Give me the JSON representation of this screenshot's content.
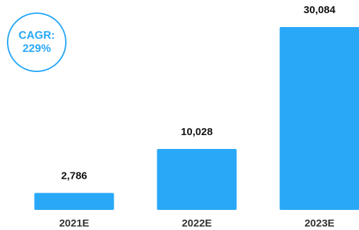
{
  "colors": {
    "bar": "#2aa8f8",
    "label": "#111111",
    "badge": "#2aa8f8"
  },
  "badge": {
    "line1": "CAGR:",
    "line2": "229%"
  },
  "chart_data": {
    "type": "bar",
    "categories": [
      "2021E",
      "2022E",
      "2023E"
    ],
    "values": [
      2786,
      10028,
      30084
    ],
    "value_labels": [
      "2,786",
      "10,028",
      "30,084"
    ],
    "title": "",
    "xlabel": "",
    "ylabel": "",
    "ylim": [
      0,
      30084
    ],
    "grid": false,
    "legend": "none"
  }
}
